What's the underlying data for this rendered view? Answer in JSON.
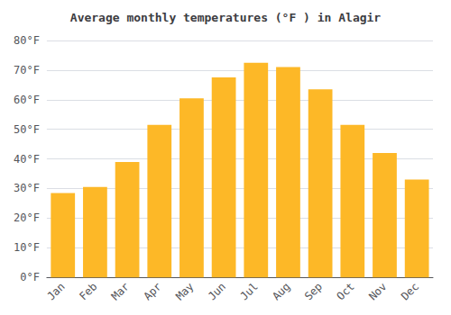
{
  "chart_data": {
    "type": "bar",
    "title": "Average monthly temperatures (°F ) in Alagir",
    "categories": [
      "Jan",
      "Feb",
      "Mar",
      "Apr",
      "May",
      "Jun",
      "Jul",
      "Aug",
      "Sep",
      "Oct",
      "Nov",
      "Dec"
    ],
    "values": [
      28.5,
      30.5,
      39,
      51.5,
      60.5,
      67.5,
      72.5,
      71,
      63.5,
      51.5,
      42,
      33
    ],
    "color": "#FDB827",
    "ylim": [
      0,
      80
    ],
    "yticks": [
      {
        "value": 0,
        "label": "0°F"
      },
      {
        "value": 10,
        "label": "10°F"
      },
      {
        "value": 20,
        "label": "20°F"
      },
      {
        "value": 30,
        "label": "30°F"
      },
      {
        "value": 40,
        "label": "40°F"
      },
      {
        "value": 50,
        "label": "50°F"
      },
      {
        "value": 60,
        "label": "60°F"
      },
      {
        "value": 70,
        "label": "70°F"
      },
      {
        "value": 80,
        "label": "80°F"
      }
    ],
    "grid": true
  }
}
